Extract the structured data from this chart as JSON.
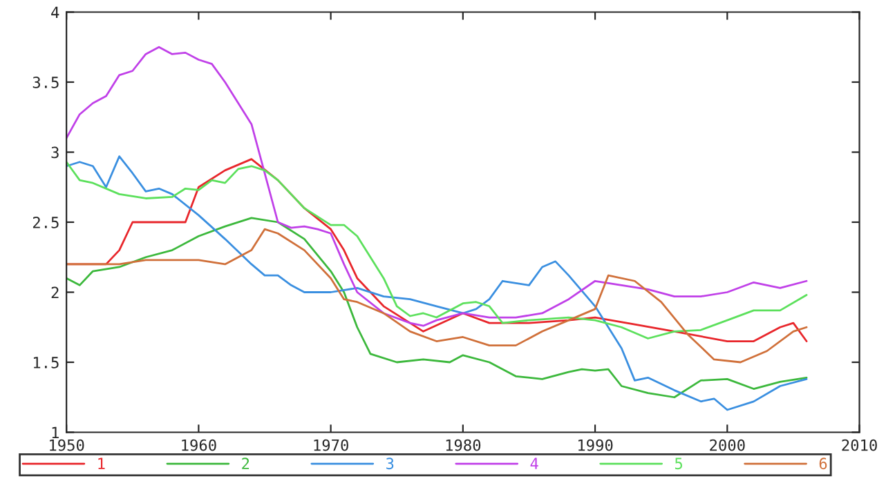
{
  "chart_data": {
    "type": "line",
    "xlim": [
      1950,
      2010
    ],
    "xticks": [
      1950,
      1960,
      1970,
      1980,
      1990,
      2000,
      2010
    ],
    "ylim": [
      1,
      4
    ],
    "yticks": [
      1,
      1.5,
      2,
      2.5,
      3,
      3.5,
      4
    ],
    "grid": false,
    "legend": "bottom",
    "marker": "none",
    "line_style": "solid",
    "series": [
      {
        "name": "1",
        "color": "#e8262b",
        "x": [
          1950,
          1953,
          1954,
          1955,
          1959,
          1960,
          1962,
          1964,
          1966,
          1968,
          1970,
          1971,
          1972,
          1974,
          1976,
          1977,
          1980,
          1982,
          1985,
          1988,
          1990,
          1993,
          1996,
          2000,
          2002,
          2004,
          2005,
          2006
        ],
        "values": [
          2.2,
          2.2,
          2.3,
          2.5,
          2.5,
          2.75,
          2.87,
          2.95,
          2.8,
          2.6,
          2.45,
          2.3,
          2.1,
          1.9,
          1.78,
          1.72,
          1.85,
          1.78,
          1.78,
          1.8,
          1.82,
          1.77,
          1.72,
          1.65,
          1.65,
          1.75,
          1.78,
          1.65
        ]
      },
      {
        "name": "2",
        "color": "#3cb83c",
        "x": [
          1950,
          1951,
          1952,
          1954,
          1956,
          1958,
          1960,
          1962,
          1964,
          1966,
          1968,
          1970,
          1971,
          1972,
          1973,
          1975,
          1977,
          1979,
          1980,
          1982,
          1984,
          1986,
          1988,
          1989,
          1990,
          1991,
          1992,
          1994,
          1996,
          1998,
          2000,
          2002,
          2004,
          2006
        ],
        "values": [
          2.1,
          2.05,
          2.15,
          2.18,
          2.25,
          2.3,
          2.4,
          2.47,
          2.53,
          2.5,
          2.38,
          2.15,
          2.0,
          1.75,
          1.56,
          1.5,
          1.52,
          1.5,
          1.55,
          1.5,
          1.4,
          1.38,
          1.43,
          1.45,
          1.44,
          1.45,
          1.33,
          1.28,
          1.25,
          1.37,
          1.38,
          1.31,
          1.36,
          1.39
        ]
      },
      {
        "name": "3",
        "color": "#3a8fe0",
        "x": [
          1950,
          1951,
          1952,
          1953,
          1954,
          1955,
          1956,
          1957,
          1958,
          1960,
          1962,
          1964,
          1965,
          1966,
          1967,
          1968,
          1970,
          1972,
          1974,
          1976,
          1978,
          1980,
          1981,
          1982,
          1983,
          1985,
          1986,
          1987,
          1988,
          1990,
          1992,
          1993,
          1994,
          1996,
          1998,
          1999,
          2000,
          2002,
          2004,
          2006
        ],
        "values": [
          2.9,
          2.93,
          2.9,
          2.75,
          2.97,
          2.85,
          2.72,
          2.74,
          2.7,
          2.55,
          2.38,
          2.2,
          2.12,
          2.12,
          2.05,
          2.0,
          2.0,
          2.03,
          1.97,
          1.95,
          1.9,
          1.85,
          1.88,
          1.95,
          2.08,
          2.05,
          2.18,
          2.22,
          2.12,
          1.9,
          1.6,
          1.37,
          1.39,
          1.3,
          1.22,
          1.24,
          1.16,
          1.22,
          1.33,
          1.38
        ]
      },
      {
        "name": "4",
        "color": "#c040e8",
        "x": [
          1950,
          1951,
          1952,
          1953,
          1954,
          1955,
          1956,
          1957,
          1958,
          1959,
          1960,
          1961,
          1962,
          1963,
          1964,
          1965,
          1966,
          1967,
          1968,
          1969,
          1970,
          1971,
          1972,
          1974,
          1976,
          1977,
          1978,
          1980,
          1982,
          1984,
          1986,
          1988,
          1990,
          1992,
          1994,
          1996,
          1998,
          2000,
          2002,
          2004,
          2006
        ],
        "values": [
          3.1,
          3.27,
          3.35,
          3.4,
          3.55,
          3.58,
          3.7,
          3.75,
          3.7,
          3.71,
          3.66,
          3.63,
          3.5,
          3.35,
          3.2,
          2.85,
          2.5,
          2.46,
          2.47,
          2.45,
          2.42,
          2.2,
          2.0,
          1.85,
          1.78,
          1.76,
          1.8,
          1.85,
          1.82,
          1.82,
          1.85,
          1.95,
          2.08,
          2.05,
          2.02,
          1.97,
          1.97,
          2.0,
          2.07,
          2.03,
          2.08
        ]
      },
      {
        "name": "5",
        "color": "#5ce05c",
        "x": [
          1950,
          1951,
          1952,
          1954,
          1956,
          1958,
          1959,
          1960,
          1961,
          1962,
          1963,
          1964,
          1965,
          1966,
          1968,
          1970,
          1971,
          1972,
          1974,
          1975,
          1976,
          1977,
          1978,
          1980,
          1981,
          1982,
          1983,
          1985,
          1988,
          1990,
          1992,
          1994,
          1996,
          1998,
          2000,
          2002,
          2004,
          2006
        ],
        "values": [
          2.93,
          2.8,
          2.78,
          2.7,
          2.67,
          2.68,
          2.74,
          2.73,
          2.8,
          2.78,
          2.88,
          2.9,
          2.87,
          2.8,
          2.6,
          2.48,
          2.48,
          2.4,
          2.1,
          1.9,
          1.83,
          1.85,
          1.82,
          1.92,
          1.93,
          1.9,
          1.78,
          1.8,
          1.82,
          1.8,
          1.75,
          1.67,
          1.72,
          1.73,
          1.8,
          1.87,
          1.87,
          1.98
        ]
      },
      {
        "name": "6",
        "color": "#d0703a",
        "x": [
          1950,
          1954,
          1956,
          1960,
          1962,
          1964,
          1965,
          1966,
          1968,
          1970,
          1971,
          1972,
          1974,
          1976,
          1978,
          1980,
          1982,
          1984,
          1986,
          1988,
          1990,
          1991,
          1993,
          1995,
          1997,
          1999,
          2001,
          2003,
          2005,
          2006
        ],
        "values": [
          2.2,
          2.2,
          2.23,
          2.23,
          2.2,
          2.3,
          2.45,
          2.42,
          2.3,
          2.1,
          1.95,
          1.93,
          1.85,
          1.72,
          1.65,
          1.68,
          1.62,
          1.62,
          1.72,
          1.8,
          1.88,
          2.12,
          2.08,
          1.93,
          1.7,
          1.52,
          1.5,
          1.58,
          1.72,
          1.75
        ]
      }
    ]
  }
}
